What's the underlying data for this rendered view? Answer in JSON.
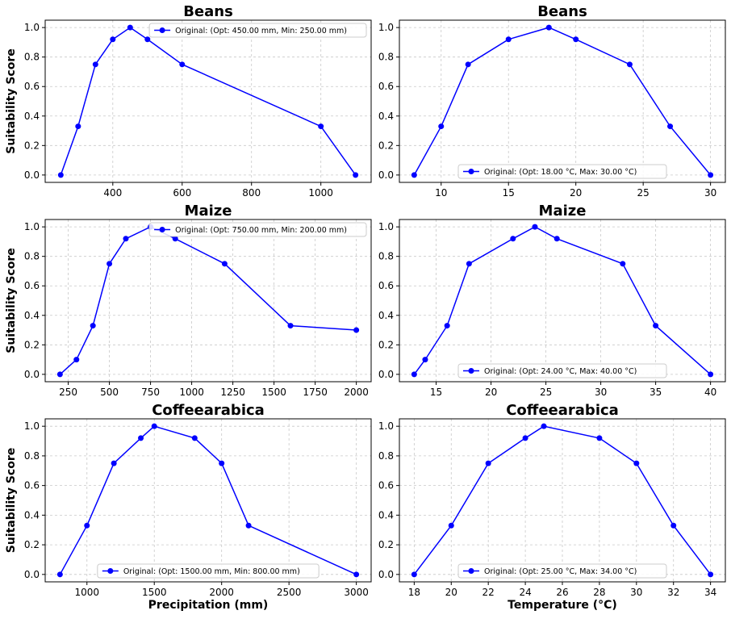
{
  "chart_data": [
    {
      "type": "line",
      "title": "Beans",
      "xlabel": "",
      "ylabel": "Suitability Score",
      "xlim": [
        205,
        1145
      ],
      "ylim": [
        -0.05,
        1.05
      ],
      "xticks": [
        400,
        600,
        800,
        1000
      ],
      "yticks": [
        0.0,
        0.2,
        0.4,
        0.6,
        0.8,
        1.0
      ],
      "grid": true,
      "legend_position": "top-right",
      "series": [
        {
          "name": "Original: (Opt: 450.00 mm, Min: 250.00 mm)",
          "color": "#0000ff",
          "x": [
            250,
            300,
            350,
            400,
            450,
            500,
            600,
            1000,
            1100
          ],
          "y": [
            0.0,
            0.33,
            0.75,
            0.92,
            1.0,
            0.92,
            0.75,
            0.33,
            0.0
          ]
        }
      ]
    },
    {
      "type": "line",
      "title": "Beans",
      "xlabel": "",
      "ylabel": "",
      "xlim": [
        6.9,
        31.1
      ],
      "ylim": [
        -0.05,
        1.05
      ],
      "xticks": [
        10,
        15,
        20,
        25,
        30
      ],
      "yticks": [
        0.0,
        0.2,
        0.4,
        0.6,
        0.8,
        1.0
      ],
      "grid": true,
      "legend_position": "bottom-center",
      "series": [
        {
          "name": "Original: (Opt: 18.00 °C, Max: 30.00 °C)",
          "color": "#0000ff",
          "x": [
            8,
            10,
            12,
            15,
            18,
            20,
            24,
            27,
            30
          ],
          "y": [
            0.0,
            0.33,
            0.75,
            0.92,
            1.0,
            0.92,
            0.75,
            0.33,
            0.0
          ]
        }
      ]
    },
    {
      "type": "line",
      "title": "Maize",
      "xlabel": "",
      "ylabel": "Suitability Score",
      "xlim": [
        110,
        2090
      ],
      "ylim": [
        -0.05,
        1.05
      ],
      "xticks": [
        250,
        500,
        750,
        1000,
        1250,
        1500,
        1750,
        2000
      ],
      "yticks": [
        0.0,
        0.2,
        0.4,
        0.6,
        0.8,
        1.0
      ],
      "grid": true,
      "legend_position": "top-right",
      "series": [
        {
          "name": "Original: (Opt: 750.00 mm, Min: 200.00 mm)",
          "color": "#0000ff",
          "x": [
            200,
            300,
            400,
            500,
            600,
            750,
            900,
            1200,
            1600,
            2000
          ],
          "y": [
            0.0,
            0.1,
            0.33,
            0.75,
            0.92,
            1.0,
            0.92,
            0.75,
            0.33,
            0.3
          ]
        }
      ]
    },
    {
      "type": "line",
      "title": "Maize",
      "xlabel": "",
      "ylabel": "",
      "xlim": [
        11.65,
        41.35
      ],
      "ylim": [
        -0.05,
        1.05
      ],
      "xticks": [
        15,
        20,
        25,
        30,
        35,
        40
      ],
      "yticks": [
        0.0,
        0.2,
        0.4,
        0.6,
        0.8,
        1.0
      ],
      "grid": true,
      "legend_position": "bottom-center",
      "series": [
        {
          "name": "Original: (Opt: 24.00 °C, Max: 40.00 °C)",
          "color": "#0000ff",
          "x": [
            13,
            14,
            16,
            18,
            22,
            24,
            26,
            32,
            35,
            40
          ],
          "y": [
            0.0,
            0.1,
            0.33,
            0.75,
            0.92,
            1.0,
            0.92,
            0.75,
            0.33,
            0.0
          ]
        }
      ]
    },
    {
      "type": "line",
      "title": "Coffeearabica",
      "xlabel": "Precipitation (mm)",
      "ylabel": "Suitability Score",
      "xlim": [
        690,
        3110
      ],
      "ylim": [
        -0.05,
        1.05
      ],
      "xticks": [
        1000,
        1500,
        2000,
        2500,
        3000
      ],
      "yticks": [
        0.0,
        0.2,
        0.4,
        0.6,
        0.8,
        1.0
      ],
      "grid": true,
      "legend_position": "bottom-center",
      "series": [
        {
          "name": "Original: (Opt: 1500.00 mm, Min: 800.00 mm)",
          "color": "#0000ff",
          "x": [
            800,
            1000,
            1200,
            1400,
            1500,
            1800,
            2000,
            2200,
            3000
          ],
          "y": [
            0.0,
            0.33,
            0.75,
            0.92,
            1.0,
            0.92,
            0.75,
            0.33,
            0.0
          ]
        }
      ]
    },
    {
      "type": "line",
      "title": "Coffeearabica",
      "xlabel": "Temperature (°C)",
      "ylabel": "",
      "xlim": [
        17.2,
        34.8
      ],
      "ylim": [
        -0.05,
        1.05
      ],
      "xticks": [
        18,
        20,
        22,
        24,
        26,
        28,
        30,
        32,
        34
      ],
      "yticks": [
        0.0,
        0.2,
        0.4,
        0.6,
        0.8,
        1.0
      ],
      "grid": true,
      "legend_position": "bottom-center",
      "series": [
        {
          "name": "Original: (Opt: 25.00 °C, Max: 34.00 °C)",
          "color": "#0000ff",
          "x": [
            18,
            20,
            22,
            24,
            25,
            28,
            30,
            32,
            34
          ],
          "y": [
            0.0,
            0.33,
            0.75,
            0.92,
            1.0,
            0.92,
            0.75,
            0.33,
            0.0
          ]
        }
      ]
    }
  ]
}
